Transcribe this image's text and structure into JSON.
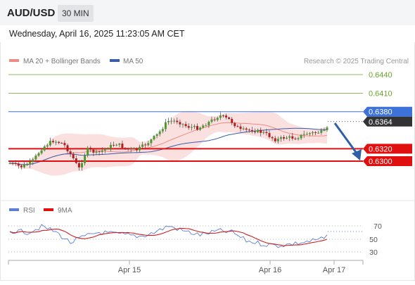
{
  "header": {
    "symbol": "AUD/USD",
    "interval": "30 MIN",
    "datetime": "Wednesday, April 16, 2025 11:23:05 AM CET"
  },
  "legend": {
    "items": [
      {
        "label": "MA 20 + Bollinger Bands",
        "color": "#f08a84"
      },
      {
        "label": "MA 50",
        "color": "#3a5ea8"
      }
    ],
    "credit": "Research © 2025 Trading Central"
  },
  "levels": [
    {
      "label": "0.6440",
      "value": 0.644,
      "kind": "target",
      "color": "#6aa32f"
    },
    {
      "label": "0.6410",
      "value": 0.641,
      "kind": "target",
      "color": "#6aa32f"
    },
    {
      "label": "0.6380",
      "value": 0.638,
      "kind": "pivot",
      "color": "#3d72d9"
    },
    {
      "label": "0.6364",
      "value": 0.6364,
      "kind": "last",
      "color": "#333333"
    },
    {
      "label": "0.6320",
      "value": 0.632,
      "kind": "support",
      "color": "#e01010"
    },
    {
      "label": "0.6300",
      "value": 0.63,
      "kind": "support",
      "color": "#e01010"
    }
  ],
  "rsi_panel": {
    "legend": [
      {
        "label": "RSI",
        "color": "#5b7fd6"
      },
      {
        "label": "9MA",
        "color": "#e01010"
      }
    ],
    "levels": [
      "70",
      "50",
      "30"
    ]
  },
  "x_axis": {
    "labels": [
      "Apr 15",
      "Apr 16",
      "Apr 17"
    ]
  },
  "colors": {
    "up": "#4a9a2e",
    "down": "#b71c1c",
    "arrow": "#2f5fa8",
    "bollinger_fill": "#fbe0e0"
  }
}
